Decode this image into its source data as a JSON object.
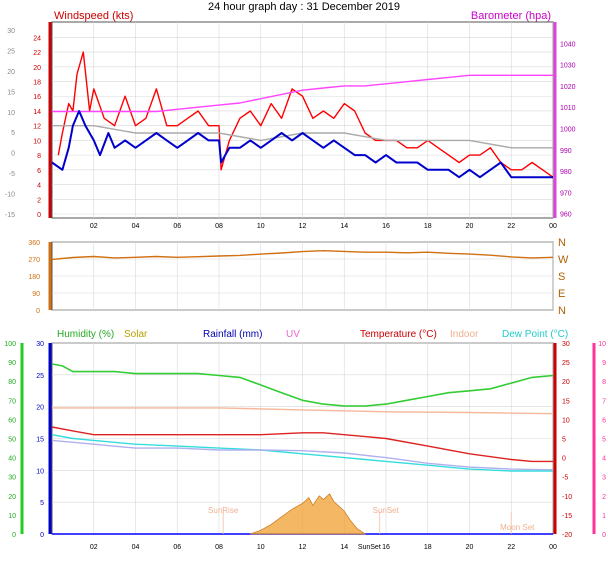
{
  "page_title": "24 hour graph day : 31 December 2019",
  "chart_data": [
    {
      "type": "line",
      "title": "",
      "labels": {
        "left": "Windspeed (kts)",
        "right": "Barometer (hpa)"
      },
      "x_ticks": [
        "02",
        "04",
        "06",
        "08",
        "10",
        "12",
        "14",
        "16",
        "18",
        "20",
        "22",
        "00"
      ],
      "xlim": [
        0,
        24
      ],
      "y_left": {
        "ylim": [
          0,
          25
        ],
        "ticks": [
          "0",
          "2",
          "4",
          "6",
          "8",
          "10",
          "12",
          "14",
          "16",
          "18",
          "20",
          "22",
          "24"
        ]
      },
      "y_right": {
        "ylim": [
          958,
          1050
        ],
        "ticks": [
          "960",
          "970",
          "980",
          "990",
          "1000",
          "1010",
          "1020",
          "1030",
          "1040"
        ]
      },
      "y_outer": {
        "ylim": [
          -15,
          30
        ],
        "ticks": [
          "-15",
          "-10",
          "-5",
          "0",
          "5",
          "10",
          "15",
          "20",
          "25",
          "30"
        ]
      },
      "grid": true,
      "series": [
        {
          "name": "Wind gust",
          "color": "#ff0000",
          "axis": "left",
          "x": [
            0.3,
            0.5,
            0.8,
            1,
            1.2,
            1.5,
            1.8,
            2,
            2.5,
            3,
            3.5,
            4,
            4.5,
            5,
            5.5,
            6,
            6.5,
            7,
            7.5,
            8,
            8.1,
            8.5,
            9,
            9.5,
            10,
            10.5,
            11,
            11.5,
            12,
            12.5,
            13,
            13.5,
            14,
            14.5,
            15,
            15.5,
            16,
            16.5,
            17,
            17.5,
            18,
            18.5,
            19,
            19.5,
            20,
            20.5,
            21,
            21.5,
            22,
            22.5,
            23,
            23.5,
            24
          ],
          "y": [
            8,
            11,
            15,
            14,
            19,
            22,
            14,
            17,
            13,
            12,
            16,
            12,
            13,
            17,
            12,
            12,
            13,
            14,
            12,
            12,
            6,
            10,
            13,
            14,
            12,
            15,
            13,
            17,
            16,
            13,
            14,
            13,
            15,
            14,
            11,
            10,
            10,
            10,
            9,
            9,
            10,
            9,
            8,
            7,
            8,
            8,
            9,
            7,
            6,
            6,
            7,
            6,
            5
          ]
        },
        {
          "name": "Barometer",
          "color": "#ff44ff",
          "axis": "right",
          "x": [
            0,
            1,
            2,
            3,
            4,
            5,
            6,
            7,
            8,
            9,
            10,
            11,
            12,
            13,
            14,
            15,
            16,
            17,
            18,
            19,
            20,
            21,
            22,
            23,
            24
          ],
          "y": [
            1008,
            1008,
            1008,
            1008,
            1008,
            1008,
            1009,
            1010,
            1011,
            1012,
            1014,
            1016,
            1018,
            1019,
            1020,
            1020,
            1021,
            1022,
            1023,
            1024,
            1025,
            1025,
            1025,
            1025,
            1025
          ]
        },
        {
          "name": "Average wind",
          "color": "#aaaaaa",
          "axis": "left",
          "x": [
            0,
            2,
            4,
            6,
            8,
            10,
            12,
            14,
            16,
            18,
            20,
            22,
            24
          ],
          "y": [
            12,
            12,
            11,
            11,
            11,
            10,
            11,
            11,
            10,
            10,
            10,
            9,
            9
          ]
        },
        {
          "name": "Windspeed",
          "color": "#0000cc",
          "axis": "left",
          "x": [
            0,
            0.5,
            0.8,
            1,
            1.3,
            1.6,
            2,
            2.3,
            2.7,
            3,
            3.5,
            4,
            4.5,
            5,
            5.5,
            6,
            6.5,
            7,
            7.5,
            8,
            8.1,
            8.5,
            9,
            9.5,
            10,
            10.5,
            11,
            11.5,
            12,
            12.5,
            13,
            13.5,
            14,
            14.5,
            15,
            15.5,
            16,
            16.5,
            17,
            17.5,
            18,
            18.5,
            19,
            19.5,
            20,
            20.5,
            21,
            21.5,
            22,
            22.5,
            23,
            23.5,
            24
          ],
          "y": [
            7,
            6,
            9,
            12,
            14,
            12,
            10,
            8,
            11,
            9,
            10,
            9,
            10,
            11,
            10,
            9,
            10,
            11,
            10,
            10,
            7,
            9,
            9,
            10,
            9,
            10,
            11,
            10,
            11,
            10,
            9,
            10,
            9,
            8,
            8,
            7,
            8,
            7,
            7,
            7,
            6,
            6,
            6,
            5,
            6,
            5,
            6,
            7,
            5,
            5,
            5,
            5,
            5
          ]
        }
      ]
    },
    {
      "type": "line",
      "title": "",
      "labels": {},
      "x_ticks": [
        "02",
        "04",
        "06",
        "08",
        "10",
        "12",
        "14",
        "16",
        "18",
        "20",
        "22",
        "00"
      ],
      "xlim": [
        0,
        24
      ],
      "y_left": {
        "ylim": [
          0,
          360
        ],
        "ticks": [
          "0",
          "90",
          "180",
          "270",
          "360"
        ]
      },
      "y_right": {
        "ticks": [
          "N",
          "E",
          "S",
          "W",
          "N"
        ]
      },
      "grid": true,
      "series": [
        {
          "name": "Wind direction",
          "color": "#d07010",
          "axis": "left",
          "x": [
            0,
            1,
            2,
            3,
            4,
            5,
            6,
            7,
            8,
            9,
            10,
            11,
            12,
            13,
            14,
            15,
            16,
            17,
            18,
            19,
            20,
            21,
            22,
            23,
            24
          ],
          "y": [
            268,
            278,
            283,
            276,
            279,
            283,
            279,
            282,
            286,
            289,
            296,
            302,
            309,
            314,
            310,
            306,
            306,
            303,
            306,
            300,
            296,
            290,
            281,
            276,
            279
          ]
        }
      ]
    },
    {
      "type": "line",
      "title": "",
      "labels": {
        "humidity": "Humidity (%)",
        "solar": "Solar",
        "rainfall": "Rainfall (mm)",
        "uv": "UV",
        "temperature": "Temperature (°C)",
        "indoor": "Indoor",
        "dewpoint": "Dew Point (°C)"
      },
      "x_ticks": [
        "02",
        "04",
        "06",
        "08",
        "10",
        "12",
        "14",
        "16",
        "18",
        "20",
        "22",
        "00"
      ],
      "xlim": [
        0,
        24
      ],
      "y_humidity": {
        "ylim": [
          0,
          100
        ],
        "ticks": [
          "0",
          "10",
          "20",
          "30",
          "40",
          "50",
          "60",
          "70",
          "80",
          "90",
          "100"
        ]
      },
      "y_rain": {
        "ylim": [
          0,
          30
        ],
        "ticks": [
          "0",
          "5",
          "10",
          "15",
          "20",
          "25",
          "30"
        ]
      },
      "y_temp": {
        "ylim": [
          -20,
          30
        ],
        "ticks": [
          "-20",
          "-15",
          "-10",
          "-5",
          "0",
          "5",
          "10",
          "15",
          "20",
          "25",
          "30"
        ]
      },
      "y_uv": {
        "ylim": [
          0,
          10
        ],
        "ticks": [
          "0",
          "1",
          "2",
          "3",
          "4",
          "5",
          "6",
          "7",
          "8",
          "9",
          "10"
        ]
      },
      "grid": true,
      "annotations": [
        {
          "text": "SunRise",
          "x": 8.2
        },
        {
          "text": "SunSet",
          "x": 15.7
        },
        {
          "text": "Moon Set",
          "x": 22
        }
      ],
      "bottom_label": "SunSet",
      "series": [
        {
          "name": "Humidity",
          "color": "#33cc33",
          "axis": "humidity",
          "x": [
            0,
            0.5,
            1,
            2,
            3,
            4,
            5,
            6,
            7,
            8,
            9,
            10,
            11,
            12,
            13,
            14,
            15,
            16,
            17,
            18,
            19,
            20,
            21,
            22,
            23,
            24
          ],
          "y": [
            89,
            88,
            85,
            85,
            85,
            84,
            84,
            84,
            84,
            83,
            82,
            78,
            74,
            70,
            68,
            67,
            67,
            68,
            70,
            72,
            74,
            75,
            76,
            79,
            82,
            83
          ]
        },
        {
          "name": "Indoor",
          "color": "#f5b89a",
          "axis": "temp",
          "x": [
            0,
            4,
            8,
            12,
            16,
            20,
            24
          ],
          "y": [
            13,
            13,
            13,
            12.5,
            12,
            11.8,
            11.5
          ]
        },
        {
          "name": "Temperature",
          "color": "#dd2222",
          "axis": "temp",
          "x": [
            0,
            1,
            2,
            4,
            6,
            8,
            10,
            12,
            13,
            14,
            15,
            16,
            18,
            20,
            22,
            23,
            24
          ],
          "y": [
            8,
            7,
            6,
            6,
            6,
            6,
            6,
            6.5,
            6.5,
            6,
            5.5,
            5,
            3,
            1,
            -0.5,
            -1,
            -1
          ]
        },
        {
          "name": "Dew Point",
          "color": "#33dddd",
          "axis": "temp",
          "x": [
            0,
            1,
            2,
            4,
            6,
            8,
            10,
            12,
            14,
            15,
            16,
            18,
            20,
            22,
            24
          ],
          "y": [
            6,
            5,
            4.5,
            3.5,
            3,
            2.5,
            2,
            1,
            0,
            -0.5,
            -1,
            -2,
            -3,
            -3.5,
            -3.5
          ]
        },
        {
          "name": "UV",
          "color": "#b0b0ee",
          "axis": "temp",
          "x": [
            0,
            2,
            4,
            6,
            8,
            10,
            12,
            14,
            16,
            18,
            20,
            22,
            24
          ],
          "y": [
            4.5,
            3.5,
            2.5,
            2.5,
            2,
            2,
            1.8,
            1.2,
            0,
            -1.5,
            -2.5,
            -3,
            -3.2
          ]
        },
        {
          "name": "Rainfall",
          "color": "#0000ff",
          "axis": "rain",
          "x": [
            0,
            24
          ],
          "y": [
            0,
            0
          ]
        },
        {
          "name": "Solar",
          "color": "#f0a030",
          "type": "area",
          "axis": "solar",
          "x": [
            9.5,
            10,
            10.5,
            11,
            11.5,
            12,
            12.3,
            12.5,
            12.8,
            13,
            13.3,
            13.5,
            14,
            14.3,
            14.6,
            15
          ],
          "y": [
            0,
            10,
            25,
            45,
            65,
            80,
            95,
            75,
            100,
            90,
            105,
            85,
            60,
            35,
            15,
            0
          ]
        }
      ]
    }
  ]
}
